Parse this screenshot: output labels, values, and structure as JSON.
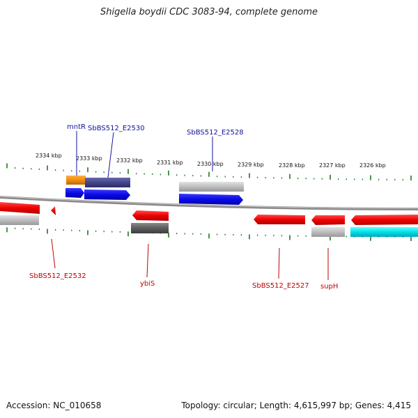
{
  "title": "Shigella boydii CDC 3083-94, complete genome",
  "footer": {
    "accession": "Accession: NC_010658",
    "summary": "Topology: circular; Length: 4,615,997 bp; Genes: 4,415"
  },
  "colors": {
    "forward_label": "#1010a0",
    "reverse_label": "#c00000",
    "tick": "#1a7a1a",
    "backbone": "#808080"
  },
  "ticks": [
    {
      "label": "2334 kbp"
    },
    {
      "label": "2333 kbp"
    },
    {
      "label": "2332 kbp"
    },
    {
      "label": "2331 kbp"
    },
    {
      "label": "2330 kbp"
    },
    {
      "label": "2329 kbp"
    },
    {
      "label": "2328 kbp"
    },
    {
      "label": "2327 kbp"
    },
    {
      "label": "2326 kbp"
    }
  ],
  "labels": {
    "forward": [
      {
        "text": "mntR"
      },
      {
        "text": "SbBS512_E2530"
      },
      {
        "text": "SbBS512_E2528"
      }
    ],
    "reverse": [
      {
        "text": "SbBS512_E2532"
      },
      {
        "text": "ybiS"
      },
      {
        "text": "SbBS512_E2527"
      },
      {
        "text": "supH"
      }
    ]
  }
}
